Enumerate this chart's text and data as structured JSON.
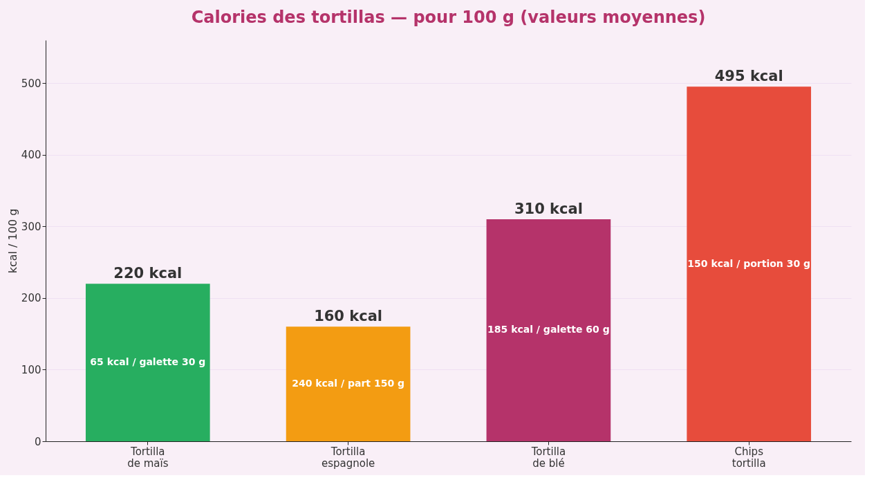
{
  "chart_data": {
    "type": "bar",
    "title": "Calories des tortillas — pour 100 g (valeurs moyennes)",
    "ylabel": "kcal / 100 g",
    "categories": [
      "Tortilla\nde maïs",
      "Tortilla\nespagnole",
      "Tortilla\nde blé",
      "Chips\ntortilla"
    ],
    "values": [
      220,
      160,
      310,
      495
    ],
    "colors": [
      "#27ae60",
      "#f39c12",
      "#b5336a",
      "#e74c3c"
    ],
    "value_labels": [
      "220 kcal",
      "160 kcal",
      "310 kcal",
      "495 kcal"
    ],
    "annotations": [
      "65 kcal / galette 30 g",
      "240 kcal / part 150 g",
      "185 kcal / galette 60 g",
      "150 kcal / portion 30 g"
    ],
    "ylim": [
      0,
      560
    ],
    "yticks": [
      0,
      100,
      200,
      300,
      400,
      500
    ],
    "grid": "y"
  }
}
